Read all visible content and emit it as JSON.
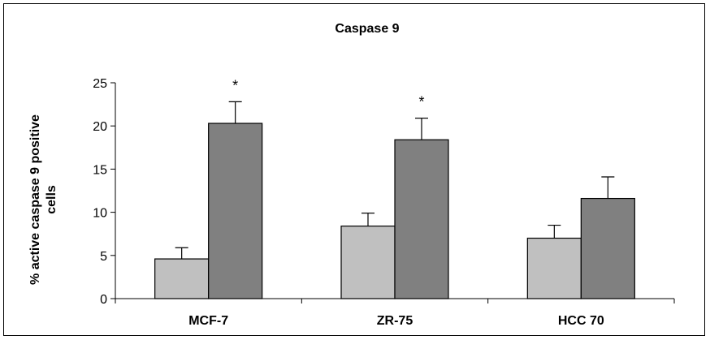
{
  "chart_data": {
    "type": "bar",
    "title": "Caspase 9",
    "xlabel": "",
    "ylabel_lines": [
      "% active caspase 9 positive",
      "cells"
    ],
    "categories": [
      "MCF-7",
      "ZR-75",
      "HCC 70"
    ],
    "series": [
      {
        "values": [
          4.6,
          8.4,
          7.0
        ],
        "errors": [
          1.3,
          1.5,
          1.5
        ],
        "color": "#c0c0c0"
      },
      {
        "values": [
          20.3,
          18.4,
          11.6
        ],
        "errors": [
          2.5,
          2.5,
          2.5
        ],
        "color": "#808080"
      }
    ],
    "significance": [
      "*",
      "*",
      ""
    ],
    "ylim": [
      0,
      25
    ],
    "yticks": [
      0,
      5,
      10,
      15,
      20,
      25
    ],
    "grid": false,
    "legend": "none"
  }
}
